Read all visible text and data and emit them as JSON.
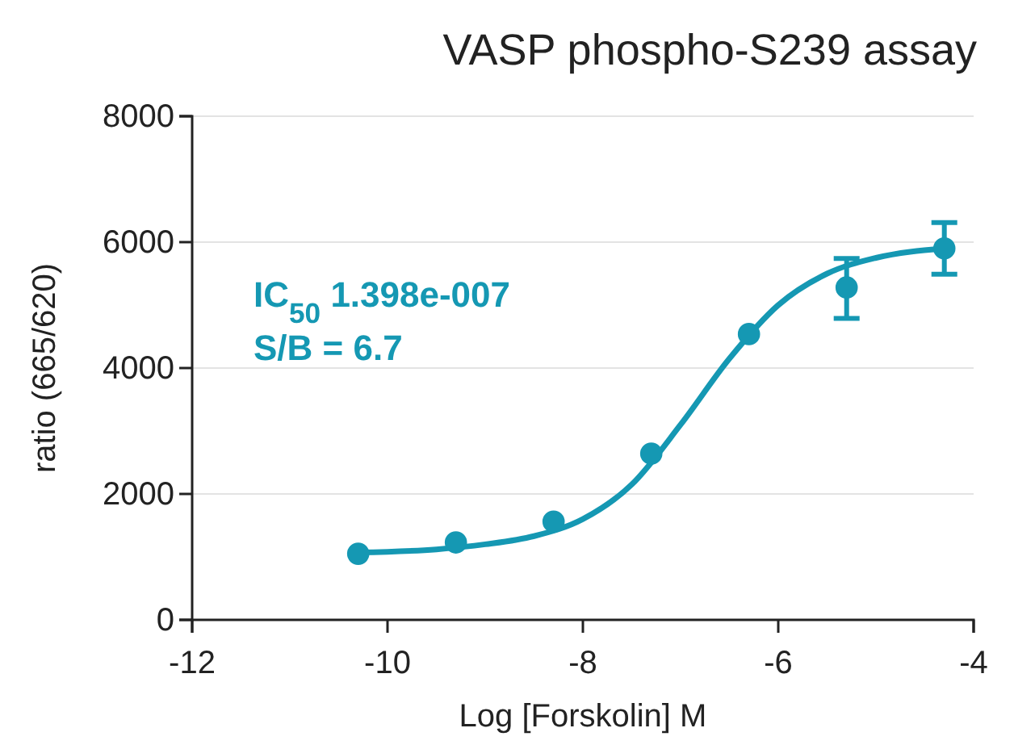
{
  "chart_data": {
    "type": "scatter",
    "title": "VASP phospho-S239 assay",
    "xlabel": "Log [Forskolin] M",
    "ylabel": "ratio (665/620)",
    "xlim": [
      -12,
      -4
    ],
    "xticks": [
      -12,
      -10,
      -8,
      -6,
      -4
    ],
    "ylim": [
      0,
      8000
    ],
    "yticks": [
      0,
      2000,
      4000,
      6000,
      8000
    ],
    "grid": "y",
    "annotations": [
      "IC$_{50}$ 1.398e-007",
      "S/B = 6.7"
    ],
    "series": [
      {
        "marker": "circle",
        "color": "#1598b3",
        "x": [
          -10.3,
          -9.3,
          -8.3,
          -7.3,
          -6.3,
          -5.3,
          -4.3
        ],
        "values": [
          1050,
          1230,
          1560,
          2640,
          4540,
          5280,
          5900
        ],
        "errors": [
          null,
          null,
          null,
          null,
          null,
          [
            4790,
            5740
          ],
          [
            5490,
            6310
          ]
        ]
      },
      {
        "type": "line",
        "color": "#1598b3",
        "x": [
          -10.3,
          -9.5,
          -9,
          -8.5,
          -8,
          -7.5,
          -7,
          -6.5,
          -6,
          -5.5,
          -5,
          -4.3
        ],
        "values": [
          1070,
          1120,
          1200,
          1330,
          1600,
          2150,
          3100,
          4150,
          5000,
          5500,
          5750,
          5900
        ]
      }
    ]
  }
}
